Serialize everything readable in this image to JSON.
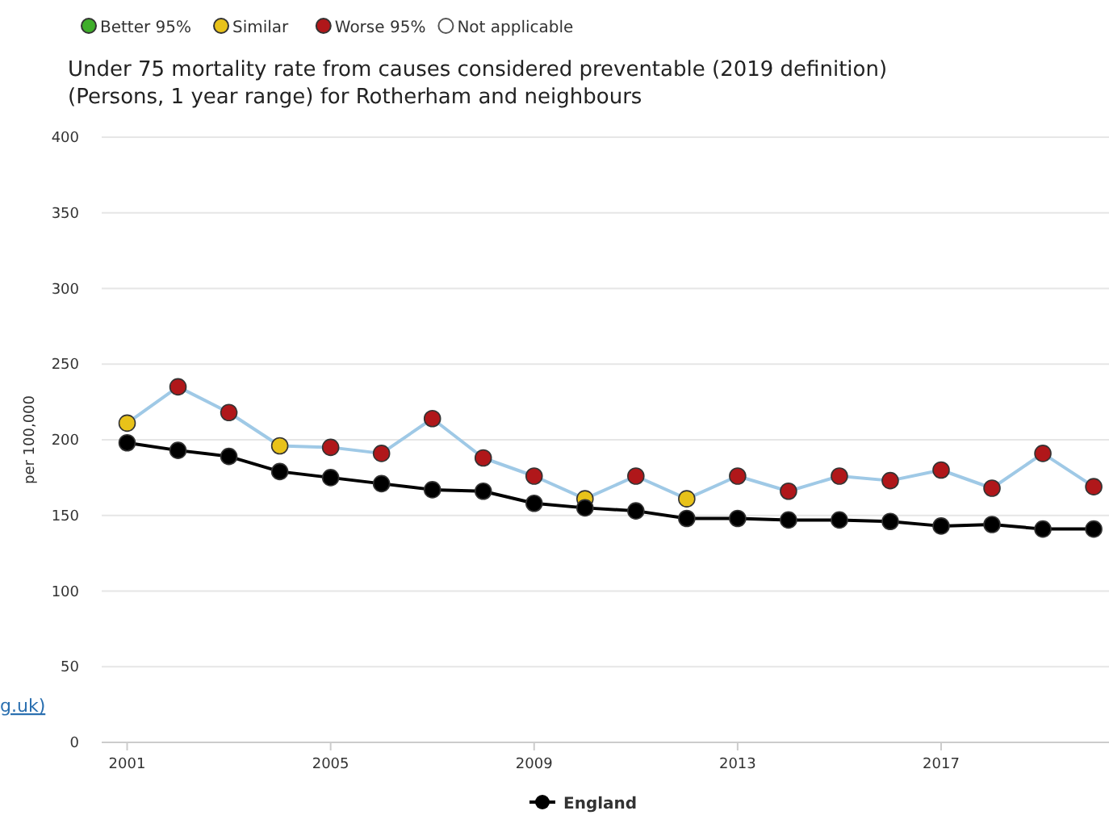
{
  "chart_data": {
    "type": "line",
    "title": "Under 75 mortality rate from causes considered preventable (2019 definition) (Persons, 1 year range) for Rotherham and neighbours",
    "ylabel": "per 100,000",
    "annotations": [
      "g.uk)"
    ],
    "x": [
      2001,
      2002,
      2003,
      2004,
      2005,
      2006,
      2007,
      2008,
      2009,
      2010,
      2011,
      2012,
      2013,
      2014,
      2015,
      2016,
      2017,
      2018,
      2019,
      2020
    ],
    "series": [
      {
        "name": "Better 95%",
        "color": "#3fae2a",
        "values": [
          null,
          null,
          null,
          null,
          null,
          null,
          null,
          null,
          null,
          null,
          null,
          null,
          null,
          null,
          null,
          null,
          null,
          null,
          null,
          null
        ]
      },
      {
        "name": "Similar",
        "color": "#e8c21a",
        "values": [
          null,
          null,
          null,
          null,
          null,
          null,
          null,
          null,
          null,
          null,
          null,
          null,
          null,
          null,
          null,
          null,
          null,
          null,
          null,
          null
        ]
      },
      {
        "name": "Worse 95%",
        "color": "#b0171a",
        "values": [
          null,
          null,
          null,
          null,
          null,
          null,
          null,
          null,
          null,
          null,
          null,
          null,
          null,
          null,
          null,
          null,
          null,
          null,
          null,
          null
        ]
      },
      {
        "name": "Not applicable",
        "color": "#ffffff",
        "values": [
          null,
          null,
          null,
          null,
          null,
          null,
          null,
          null,
          null,
          null,
          null,
          null,
          null,
          null,
          null,
          null,
          null,
          null,
          null,
          null
        ]
      },
      {
        "color": "#9fc9e6",
        "colors": [
          "#e8c21a",
          "#b0171a",
          "#b0171a",
          "#e8c21a",
          "#b0171a",
          "#b0171a",
          "#b0171a",
          "#b0171a",
          "#b0171a",
          "#e8c21a",
          "#b0171a",
          "#e8c21a",
          "#b0171a",
          "#b0171a",
          "#b0171a",
          "#b0171a",
          "#b0171a",
          "#b0171a",
          "#b0171a",
          "#b0171a"
        ],
        "values": [
          211,
          235,
          218,
          196,
          195,
          191,
          214,
          188,
          176,
          161,
          176,
          161,
          176,
          166,
          176,
          173,
          180,
          168,
          191,
          169
        ]
      },
      {
        "name": "England",
        "color": "#000000",
        "values": [
          198,
          193,
          189,
          179,
          175,
          171,
          167,
          166,
          158,
          155,
          153,
          148,
          148,
          147,
          147,
          146,
          143,
          144,
          141,
          141
        ]
      }
    ],
    "xlim": [
      2000.5,
      2020.3
    ],
    "xticks": [
      2001,
      2005,
      2009,
      2013,
      2017
    ],
    "ylim": [
      0,
      400
    ],
    "yticks": [
      0,
      50,
      100,
      150,
      200,
      250,
      300,
      350,
      400
    ],
    "grid": "y",
    "legend": "top left",
    "marker": "circle",
    "line_style": "solid"
  }
}
